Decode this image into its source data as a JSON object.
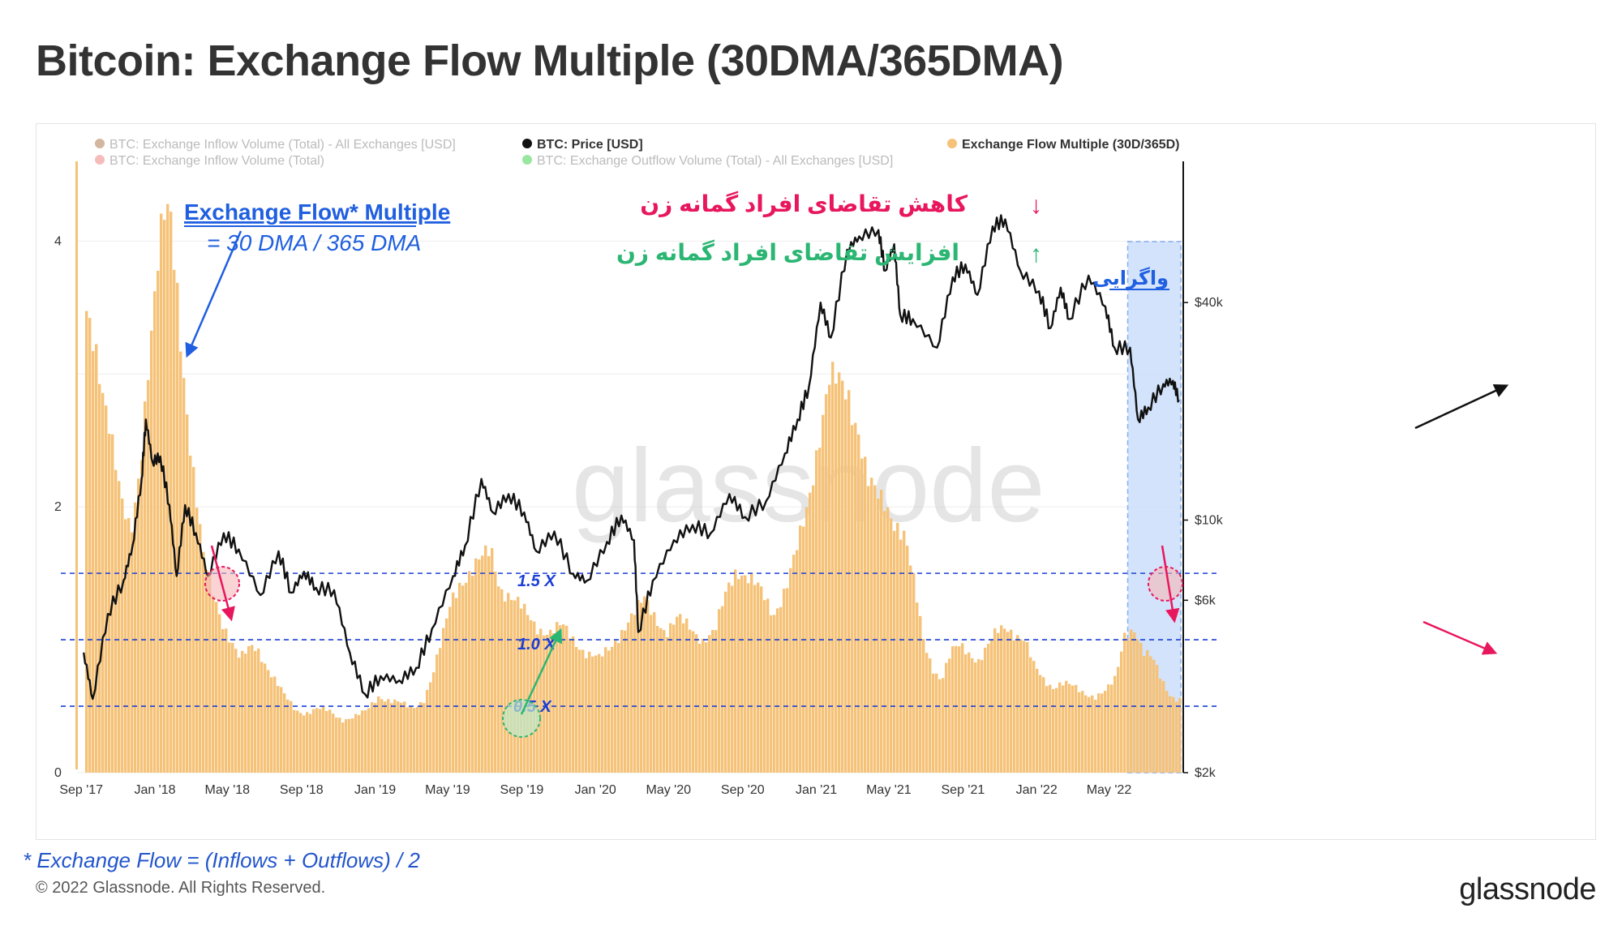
{
  "title": "Bitcoin: Exchange Flow Multiple (30DMA/365DMA)",
  "footnote": "* Exchange Flow = (Inflows + Outflows) / 2",
  "copyright": "© 2022 Glassnode. All Rights Reserved.",
  "brand": "glassnode",
  "watermark": "glassnode",
  "legend": [
    {
      "label": "BTC: Exchange Inflow Volume (Total) - All Exchanges [USD]",
      "color": "#b07a50",
      "muted": true
    },
    {
      "label": "BTC: Exchange Inflow Volume (Total)",
      "color": "#f2a0a0",
      "muted": true
    },
    {
      "label": "BTC: Price [USD]",
      "color": "#111111",
      "muted": false
    },
    {
      "label": "BTC: Exchange Outflow Volume (Total) - All Exchanges [USD]",
      "color": "#7fe08a",
      "muted": true
    },
    {
      "label": "Exchange Flow Multiple (30D/365D)",
      "color": "#f5c278",
      "muted": false
    }
  ],
  "annotations": {
    "multiple_title": "Exchange Flow* Multiple",
    "multiple_formula": "= 30 DMA / 365 DMA",
    "decrease_label": "کاهش تقاضای افراد گمانه زن",
    "increase_label": "افزایش تقاضای افراد گمانه زن",
    "divergence_label": "واگرایی",
    "down_arrow": "↓",
    "up_arrow": "↑",
    "level_15": "1.5 X",
    "level_10": "1.0 X",
    "level_05": "0.5 X"
  },
  "colors": {
    "bars": "#f5c278",
    "price": "#111111",
    "levels": "#1a3fd6",
    "red": "#e8175d",
    "green": "#2bb673",
    "blue_text": "#1f5fe0",
    "divergence_fill": "#cfe0fb"
  },
  "chart_data": {
    "type": "bar",
    "x_ticks": [
      "Sep '17",
      "Jan '18",
      "May '18",
      "Sep '18",
      "Jan '19",
      "May '19",
      "Sep '19",
      "Jan '20",
      "May '20",
      "Sep '20",
      "Jan '21",
      "May '21",
      "Sep '21",
      "Jan '22",
      "May '22"
    ],
    "y_left_ticks": [
      "0",
      "2",
      "4"
    ],
    "y_left_range": [
      0,
      4.6
    ],
    "y_right_ticks": [
      "$2k",
      "$6k",
      "$10k",
      "$40k"
    ],
    "y_right_scale": "log",
    "levels": [
      1.5,
      1.0,
      0.5
    ],
    "series": [
      {
        "name": "Exchange Flow Multiple (30D/365D)",
        "type": "bar",
        "points": [
          [
            "2017-09-05",
            3.4
          ],
          [
            "2017-09-25",
            3.1
          ],
          [
            "2017-10-15",
            2.7
          ],
          [
            "2017-11-05",
            2.0
          ],
          [
            "2017-11-20",
            1.75
          ],
          [
            "2017-12-05",
            2.3
          ],
          [
            "2017-12-20",
            3.2
          ],
          [
            "2018-01-05",
            3.9
          ],
          [
            "2018-01-15",
            4.15
          ],
          [
            "2018-01-25",
            4.1
          ],
          [
            "2018-02-05",
            3.6
          ],
          [
            "2018-02-20",
            2.8
          ],
          [
            "2018-03-05",
            2.2
          ],
          [
            "2018-03-20",
            1.6
          ],
          [
            "2018-04-05",
            1.35
          ],
          [
            "2018-04-20",
            1.15
          ],
          [
            "2018-05-05",
            1.0
          ],
          [
            "2018-05-20",
            0.85
          ],
          [
            "2018-06-10",
            0.95
          ],
          [
            "2018-06-20",
            0.92
          ],
          [
            "2018-07-10",
            0.75
          ],
          [
            "2018-08-01",
            0.58
          ],
          [
            "2018-08-20",
            0.47
          ],
          [
            "2018-09-05",
            0.45
          ],
          [
            "2018-09-25",
            0.48
          ],
          [
            "2018-10-15",
            0.46
          ],
          [
            "2018-11-05",
            0.4
          ],
          [
            "2018-11-25",
            0.42
          ],
          [
            "2018-12-15",
            0.46
          ],
          [
            "2019-01-05",
            0.58
          ],
          [
            "2019-01-20",
            0.55
          ],
          [
            "2019-02-10",
            0.52
          ],
          [
            "2019-03-01",
            0.48
          ],
          [
            "2019-03-20",
            0.55
          ],
          [
            "2019-04-05",
            0.75
          ],
          [
            "2019-04-20",
            1.0
          ],
          [
            "2019-05-05",
            1.3
          ],
          [
            "2019-05-20",
            1.45
          ],
          [
            "2019-06-05",
            1.5
          ],
          [
            "2019-06-25",
            1.6
          ],
          [
            "2019-07-10",
            1.68
          ],
          [
            "2019-07-25",
            1.4
          ],
          [
            "2019-08-15",
            1.3
          ],
          [
            "2019-09-05",
            1.2
          ],
          [
            "2019-09-25",
            1.1
          ],
          [
            "2019-10-15",
            1.05
          ],
          [
            "2019-11-05",
            1.1
          ],
          [
            "2019-11-25",
            1.0
          ],
          [
            "2019-12-15",
            0.9
          ],
          [
            "2020-01-05",
            0.85
          ],
          [
            "2020-01-25",
            0.95
          ],
          [
            "2020-02-15",
            1.1
          ],
          [
            "2020-03-05",
            1.2
          ],
          [
            "2020-03-20",
            1.3
          ],
          [
            "2020-04-05",
            1.2
          ],
          [
            "2020-04-25",
            1.05
          ],
          [
            "2020-05-15",
            1.15
          ],
          [
            "2020-06-05",
            1.1
          ],
          [
            "2020-06-25",
            1.0
          ],
          [
            "2020-07-15",
            1.05
          ],
          [
            "2020-08-05",
            1.4
          ],
          [
            "2020-08-20",
            1.55
          ],
          [
            "2020-09-10",
            1.45
          ],
          [
            "2020-09-30",
            1.35
          ],
          [
            "2020-10-20",
            1.2
          ],
          [
            "2020-11-10",
            1.4
          ],
          [
            "2020-11-30",
            1.7
          ],
          [
            "2020-12-15",
            2.0
          ],
          [
            "2021-01-05",
            2.6
          ],
          [
            "2021-01-20",
            2.95
          ],
          [
            "2021-02-05",
            2.9
          ],
          [
            "2021-02-20",
            2.85
          ],
          [
            "2021-03-10",
            2.6
          ],
          [
            "2021-03-25",
            2.2
          ],
          [
            "2021-04-10",
            2.05
          ],
          [
            "2021-04-25",
            2.0
          ],
          [
            "2021-05-10",
            1.9
          ],
          [
            "2021-05-25",
            1.8
          ],
          [
            "2021-06-10",
            1.4
          ],
          [
            "2021-06-25",
            1.0
          ],
          [
            "2021-07-10",
            0.8
          ],
          [
            "2021-07-25",
            0.7
          ],
          [
            "2021-08-10",
            0.9
          ],
          [
            "2021-08-25",
            0.95
          ],
          [
            "2021-09-10",
            0.9
          ],
          [
            "2021-09-25",
            0.85
          ],
          [
            "2021-10-10",
            0.95
          ],
          [
            "2021-10-25",
            1.05
          ],
          [
            "2021-11-10",
            1.1
          ],
          [
            "2021-11-25",
            1.05
          ],
          [
            "2021-12-10",
            1.0
          ],
          [
            "2021-12-25",
            0.8
          ],
          [
            "2022-01-10",
            0.7
          ],
          [
            "2022-01-25",
            0.65
          ],
          [
            "2022-02-10",
            0.68
          ],
          [
            "2022-02-25",
            0.65
          ],
          [
            "2022-03-15",
            0.6
          ],
          [
            "2022-04-05",
            0.58
          ],
          [
            "2022-04-25",
            0.62
          ],
          [
            "2022-05-10",
            0.7
          ],
          [
            "2022-05-25",
            1.05
          ],
          [
            "2022-06-10",
            1.1
          ],
          [
            "2022-06-25",
            0.9
          ],
          [
            "2022-07-10",
            0.85
          ],
          [
            "2022-07-25",
            0.7
          ],
          [
            "2022-08-10",
            0.58
          ],
          [
            "2022-08-25",
            0.55
          ]
        ]
      },
      {
        "name": "BTC: Price [USD]",
        "type": "line",
        "axis": "right",
        "points": [
          [
            "2017-09-05",
            4300
          ],
          [
            "2017-09-20",
            3200
          ],
          [
            "2017-10-15",
            5500
          ],
          [
            "2017-11-10",
            6800
          ],
          [
            "2017-11-25",
            8500
          ],
          [
            "2017-12-10",
            13000
          ],
          [
            "2017-12-17",
            19000
          ],
          [
            "2017-12-28",
            14500
          ],
          [
            "2018-01-10",
            15000
          ],
          [
            "2018-01-25",
            11000
          ],
          [
            "2018-02-06",
            7000
          ],
          [
            "2018-02-20",
            11000
          ],
          [
            "2018-03-10",
            9200
          ],
          [
            "2018-03-30",
            7000
          ],
          [
            "2018-04-25",
            9200
          ],
          [
            "2018-05-20",
            8300
          ],
          [
            "2018-06-25",
            6200
          ],
          [
            "2018-07-25",
            8200
          ],
          [
            "2018-08-15",
            6300
          ],
          [
            "2018-09-05",
            7200
          ],
          [
            "2018-09-25",
            6500
          ],
          [
            "2018-10-25",
            6400
          ],
          [
            "2018-11-20",
            4300
          ],
          [
            "2018-12-15",
            3300
          ],
          [
            "2019-01-10",
            3700
          ],
          [
            "2019-02-10",
            3600
          ],
          [
            "2019-03-10",
            3900
          ],
          [
            "2019-04-05",
            5000
          ],
          [
            "2019-05-10",
            7000
          ],
          [
            "2019-05-30",
            8500
          ],
          [
            "2019-06-26",
            13000
          ],
          [
            "2019-07-15",
            10500
          ],
          [
            "2019-08-10",
            11800
          ],
          [
            "2019-09-05",
            10500
          ],
          [
            "2019-09-25",
            8200
          ],
          [
            "2019-10-25",
            9300
          ],
          [
            "2019-11-25",
            7100
          ],
          [
            "2019-12-18",
            6800
          ],
          [
            "2020-01-20",
            8700
          ],
          [
            "2020-02-13",
            10300
          ],
          [
            "2020-03-05",
            8800
          ],
          [
            "2020-03-12",
            4900
          ],
          [
            "2020-04-05",
            6800
          ],
          [
            "2020-05-10",
            8800
          ],
          [
            "2020-06-10",
            9700
          ],
          [
            "2020-07-10",
            9200
          ],
          [
            "2020-08-10",
            11800
          ],
          [
            "2020-09-05",
            10200
          ],
          [
            "2020-10-10",
            11300
          ],
          [
            "2020-11-10",
            15300
          ],
          [
            "2020-12-01",
            19000
          ],
          [
            "2020-12-20",
            23500
          ],
          [
            "2021-01-08",
            40000
          ],
          [
            "2021-01-25",
            32000
          ],
          [
            "2021-02-21",
            56000
          ],
          [
            "2021-03-13",
            61000
          ],
          [
            "2021-04-14",
            63500
          ],
          [
            "2021-04-25",
            49000
          ],
          [
            "2021-05-10",
            58000
          ],
          [
            "2021-05-20",
            37000
          ],
          [
            "2021-06-10",
            36000
          ],
          [
            "2021-07-20",
            30000
          ],
          [
            "2021-08-15",
            47000
          ],
          [
            "2021-09-05",
            51000
          ],
          [
            "2021-09-25",
            42000
          ],
          [
            "2021-10-20",
            65000
          ],
          [
            "2021-11-10",
            68000
          ],
          [
            "2021-12-05",
            49000
          ],
          [
            "2022-01-05",
            43000
          ],
          [
            "2022-01-24",
            34000
          ],
          [
            "2022-02-10",
            44000
          ],
          [
            "2022-02-24",
            36000
          ],
          [
            "2022-03-28",
            47500
          ],
          [
            "2022-04-25",
            39000
          ],
          [
            "2022-05-10",
            30000
          ],
          [
            "2022-06-05",
            30000
          ],
          [
            "2022-06-18",
            19000
          ],
          [
            "2022-07-05",
            20500
          ],
          [
            "2022-07-30",
            23800
          ],
          [
            "2022-08-15",
            24300
          ],
          [
            "2022-08-25",
            21500
          ]
        ]
      }
    ]
  }
}
